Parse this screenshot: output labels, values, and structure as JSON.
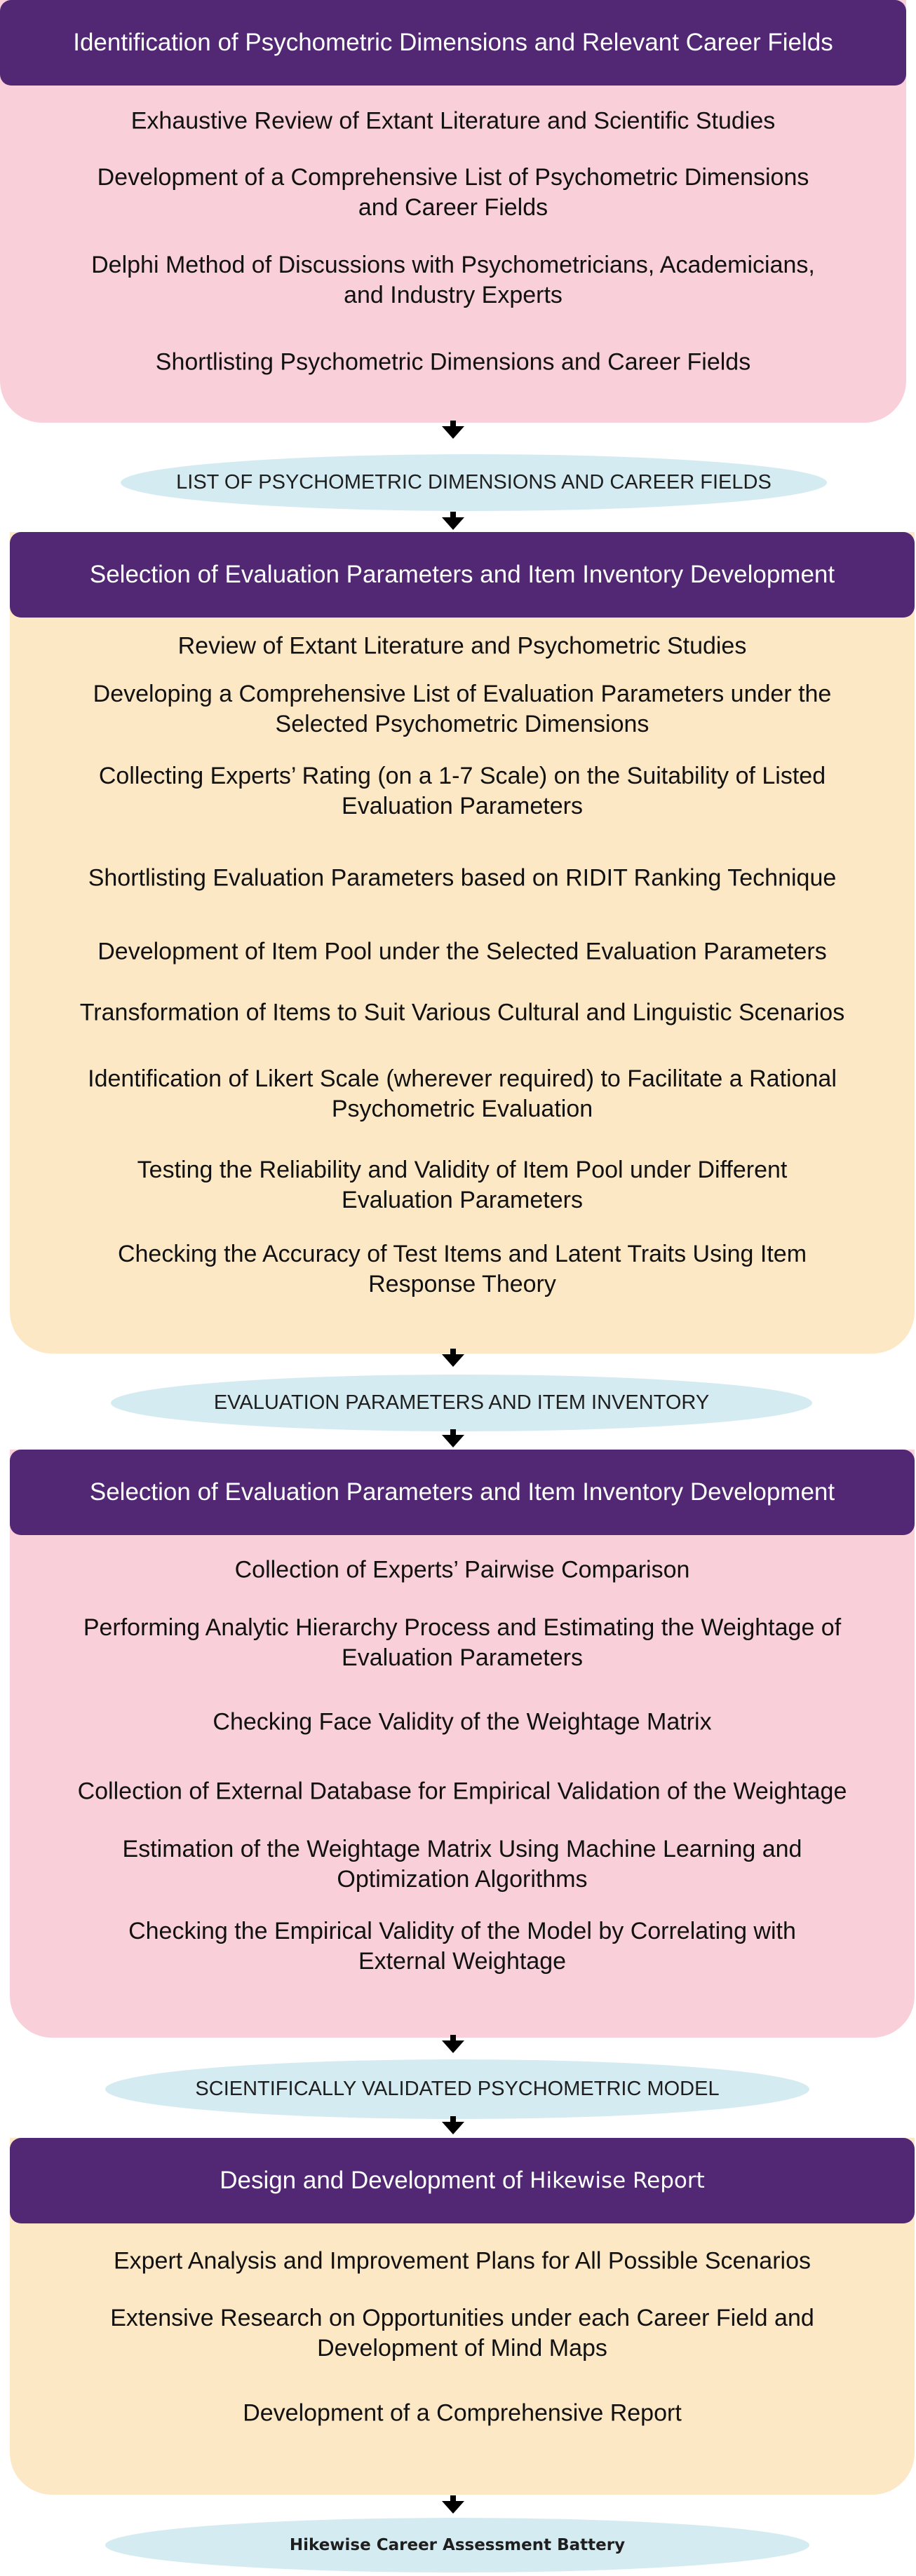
{
  "stage1": {
    "title": "Identification of Psychometric Dimensions and Relevant Career Fields",
    "steps": [
      "Exhaustive Review of Extant Literature and Scientific Studies",
      "Development of a Comprehensive List of Psychometric Dimensions and Career Fields",
      "Delphi Method of Discussions with Psychometricians, Academicians, and Industry Experts",
      "Shortlisting Psychometric Dimensions and Career Fields"
    ]
  },
  "output1": "LIST OF PSYCHOMETRIC DIMENSIONS AND CAREER FIELDS",
  "stage2": {
    "title": "Selection of Evaluation Parameters and Item Inventory Development",
    "steps": [
      "Review of Extant Literature and Psychometric Studies",
      "Developing a Comprehensive List of Evaluation Parameters under the Selected Psychometric Dimensions",
      "Collecting Experts’ Rating (on a 1-7 Scale) on the Suitability of Listed Evaluation Parameters",
      "Shortlisting Evaluation Parameters based on RIDIT Ranking Technique",
      "Development of Item Pool under the Selected Evaluation Parameters",
      "Transformation of Items to Suit Various Cultural and Linguistic Scenarios",
      "Identification of Likert Scale (wherever required) to Facilitate a Rational Psychometric Evaluation",
      "Testing the Reliability and Validity of Item Pool under Different Evaluation Parameters",
      "Checking the Accuracy of Test Items and Latent Traits Using Item Response Theory"
    ]
  },
  "output2": "EVALUATION PARAMETERS AND ITEM INVENTORY",
  "stage3": {
    "title": "Selection of Evaluation Parameters and Item Inventory Development",
    "steps": [
      "Collection of Experts’ Pairwise Comparison",
      "Performing Analytic Hierarchy Process and Estimating the Weightage of Evaluation Parameters",
      "Checking Face Validity of the Weightage Matrix",
      "Collection of External Database for Empirical Validation of the Weightage",
      "Estimation of the Weightage Matrix Using Machine Learning and Optimization Algorithms",
      "Checking the Empirical Validity of the Model by Correlating with External Weightage"
    ]
  },
  "output3": "SCIENTIFICALLY VALIDATED PSYCHOMETRIC MODEL",
  "stage4": {
    "title_prefix": "Design and Development of",
    "title_brand": "Hikewise Report",
    "steps": [
      "Expert Analysis and Improvement Plans for All Possible Scenarios",
      "Extensive Research on Opportunities under each Career Field and Development of Mind Maps",
      "Development of a Comprehensive Report"
    ]
  },
  "output4": "Hikewise Career Assessment Battery",
  "colors": {
    "header": "#522773",
    "pink_box": "#f9d0d9",
    "cream_box": "#fde8c6",
    "output_ellipse": "#d5ebf2"
  }
}
